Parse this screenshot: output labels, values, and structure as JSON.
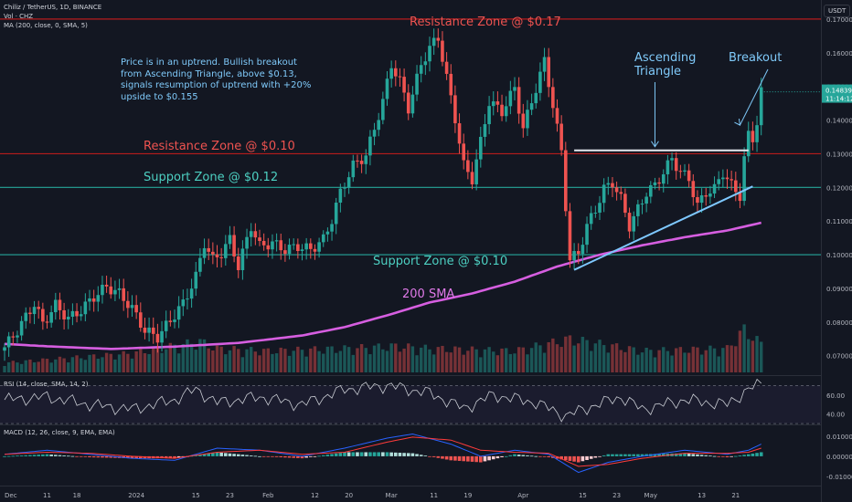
{
  "header": {
    "symbol_line": "Chiliz / TetherUS, 1D, BINANCE",
    "vol_line": "Vol · CHZ",
    "ma_line": "MA (200, close, 0, SMA, 5)",
    "currency_button": "USDT"
  },
  "annotations": {
    "resistance_017": "Resistance Zone @ $0.17",
    "resistance_010": "Resistance Zone @ $0.10",
    "support_012": "Support Zone @ $0.12",
    "support_010": "Support Zone @ $0.10",
    "sma_label": "200 SMA",
    "ascending_triangle": "Ascending\nTriangle",
    "breakout": "Breakout",
    "commentary": "Price is in an uptrend. Bullish breakout\nfrom Ascending Triangle, above $0.13,\nsignals resumption of uptrend with +20%\nupside to $0.155"
  },
  "price_tag": {
    "price": "0.14839",
    "countdown": "11:14:12"
  },
  "panes": {
    "rsi_label": "RSI (14, close, SMA, 14, 2)",
    "macd_label": "MACD (12, 26, close, 9, EMA, EMA)"
  },
  "colors": {
    "background": "#131722",
    "bull": "#26a69a",
    "bear": "#ef5350",
    "resistance_line": "#b71c1c",
    "support_line": "#26a69a",
    "sma": "#d65ee0",
    "triangle": "#7ec8ff",
    "annotation_text": "#7fc9f9",
    "rsi_line": "#c9ccd3",
    "macd_line": "#2962ff",
    "signal_line": "#ff3b3b",
    "axis_text": "#b2b5be"
  },
  "chart_data": {
    "type": "candlestick",
    "symbol": "Chiliz / TetherUS",
    "timeframe": "1D",
    "exchange": "BINANCE",
    "price_axis_ticks": [
      "0.17000",
      "0.16000",
      "0.15000",
      "0.14000",
      "0.13000",
      "0.12000",
      "0.11000",
      "0.10000",
      "0.09000",
      "0.08000",
      "0.07000"
    ],
    "price_ylim": [
      0.0645,
      0.1735
    ],
    "x_tick_labels": [
      "Dec",
      "11",
      "18",
      "2024",
      "15",
      "23",
      "Feb",
      "12",
      "20",
      "Mar",
      "11",
      "19",
      "Apr",
      "15",
      "23",
      "May",
      "13",
      "21"
    ],
    "x_tick_days": [
      0,
      10,
      17,
      31,
      45,
      53,
      62,
      73,
      81,
      91,
      101,
      109,
      122,
      136,
      144,
      152,
      164,
      172
    ],
    "horizontal_levels": [
      {
        "price": 0.17,
        "kind": "resistance"
      },
      {
        "price": 0.13,
        "kind": "resistance"
      },
      {
        "price": 0.12,
        "kind": "support"
      },
      {
        "price": 0.1,
        "kind": "support"
      }
    ],
    "triangle": {
      "top_price": 0.131,
      "top_start_day": 134,
      "top_end_day": 175,
      "bottom_start": [
        134,
        0.0955
      ],
      "bottom_end": [
        176,
        0.1203
      ]
    },
    "close_anchors": [
      [
        0,
        0.0725
      ],
      [
        3,
        0.0775
      ],
      [
        7,
        0.0855
      ],
      [
        9,
        0.0795
      ],
      [
        12,
        0.085
      ],
      [
        15,
        0.081
      ],
      [
        18,
        0.0835
      ],
      [
        21,
        0.0875
      ],
      [
        24,
        0.0905
      ],
      [
        27,
        0.0885
      ],
      [
        30,
        0.084
      ],
      [
        33,
        0.0775
      ],
      [
        36,
        0.0755
      ],
      [
        39,
        0.0805
      ],
      [
        42,
        0.0855
      ],
      [
        45,
        0.0935
      ],
      [
        47,
        0.1035
      ],
      [
        49,
        0.0985
      ],
      [
        51,
        0.1005
      ],
      [
        53,
        0.1045
      ],
      [
        55,
        0.0965
      ],
      [
        58,
        0.1085
      ],
      [
        60,
        0.1025
      ],
      [
        63,
        0.1035
      ],
      [
        66,
        0.1015
      ],
      [
        69,
        0.1025
      ],
      [
        72,
        0.1015
      ],
      [
        75,
        0.1045
      ],
      [
        77,
        0.1105
      ],
      [
        79,
        0.1185
      ],
      [
        82,
        0.1265
      ],
      [
        85,
        0.1295
      ],
      [
        87,
        0.1375
      ],
      [
        89,
        0.1455
      ],
      [
        91,
        0.1565
      ],
      [
        93,
        0.1515
      ],
      [
        95,
        0.1435
      ],
      [
        98,
        0.1565
      ],
      [
        100,
        0.1615
      ],
      [
        102,
        0.1645
      ],
      [
        104,
        0.1525
      ],
      [
        106,
        0.1405
      ],
      [
        108,
        0.1265
      ],
      [
        110,
        0.1225
      ],
      [
        112,
        0.1335
      ],
      [
        114,
        0.1455
      ],
      [
        117,
        0.1425
      ],
      [
        120,
        0.1495
      ],
      [
        122,
        0.1375
      ],
      [
        124,
        0.1455
      ],
      [
        127,
        0.1575
      ],
      [
        129,
        0.1445
      ],
      [
        131,
        0.1305
      ],
      [
        133,
        0.0985
      ],
      [
        135,
        0.1005
      ],
      [
        137,
        0.1085
      ],
      [
        139,
        0.1135
      ],
      [
        141,
        0.1195
      ],
      [
        143,
        0.1215
      ],
      [
        145,
        0.1165
      ],
      [
        147,
        0.1085
      ],
      [
        149,
        0.1135
      ],
      [
        151,
        0.1185
      ],
      [
        153,
        0.1205
      ],
      [
        155,
        0.1245
      ],
      [
        157,
        0.1285
      ],
      [
        159,
        0.1245
      ],
      [
        161,
        0.1225
      ],
      [
        163,
        0.1145
      ],
      [
        165,
        0.1185
      ],
      [
        167,
        0.1195
      ],
      [
        169,
        0.1245
      ],
      [
        171,
        0.1205
      ],
      [
        173,
        0.1175
      ],
      [
        174,
        0.1285
      ],
      [
        175,
        0.1355
      ],
      [
        176,
        0.1345
      ],
      [
        177,
        0.1395
      ],
      [
        178,
        0.1484
      ]
    ],
    "sma200_anchors": [
      [
        0,
        0.0735
      ],
      [
        10,
        0.0728
      ],
      [
        25,
        0.072
      ],
      [
        40,
        0.0727
      ],
      [
        55,
        0.0738
      ],
      [
        70,
        0.076
      ],
      [
        80,
        0.0785
      ],
      [
        90,
        0.082
      ],
      [
        100,
        0.0858
      ],
      [
        110,
        0.0885
      ],
      [
        120,
        0.092
      ],
      [
        130,
        0.0965
      ],
      [
        140,
        0.1
      ],
      [
        150,
        0.1028
      ],
      [
        160,
        0.1052
      ],
      [
        170,
        0.1072
      ],
      [
        178,
        0.1095
      ]
    ],
    "volume_anchors": [
      [
        0,
        0.2
      ],
      [
        15,
        0.3
      ],
      [
        30,
        0.4
      ],
      [
        46,
        0.65
      ],
      [
        50,
        0.5
      ],
      [
        62,
        0.45
      ],
      [
        80,
        0.5
      ],
      [
        92,
        0.55
      ],
      [
        100,
        0.5
      ],
      [
        120,
        0.45
      ],
      [
        133,
        0.7
      ],
      [
        150,
        0.45
      ],
      [
        170,
        0.5
      ],
      [
        174,
        0.9
      ],
      [
        178,
        0.6
      ]
    ],
    "rsi": {
      "ticks": [
        60,
        40
      ],
      "ylim": [
        32,
        78
      ],
      "anchors": [
        [
          0,
          55
        ],
        [
          10,
          58
        ],
        [
          20,
          50
        ],
        [
          30,
          45
        ],
        [
          40,
          55
        ],
        [
          45,
          66
        ],
        [
          50,
          52
        ],
        [
          60,
          58
        ],
        [
          70,
          50
        ],
        [
          80,
          66
        ],
        [
          90,
          70
        ],
        [
          100,
          62
        ],
        [
          108,
          46
        ],
        [
          115,
          60
        ],
        [
          125,
          52
        ],
        [
          132,
          38
        ],
        [
          138,
          48
        ],
        [
          145,
          58
        ],
        [
          150,
          45
        ],
        [
          160,
          55
        ],
        [
          170,
          50
        ],
        [
          175,
          66
        ],
        [
          178,
          72
        ]
      ]
    },
    "macd": {
      "ticks": [
        "0.01000",
        "0.00000",
        "-0.01000"
      ],
      "ylim": [
        -0.0145,
        0.0135
      ],
      "macd_anchors": [
        [
          0,
          0.001
        ],
        [
          10,
          0.003
        ],
        [
          20,
          0.001
        ],
        [
          30,
          -0.001
        ],
        [
          40,
          -0.002
        ],
        [
          50,
          0.004
        ],
        [
          60,
          0.003
        ],
        [
          70,
          0.0
        ],
        [
          80,
          0.004
        ],
        [
          90,
          0.009
        ],
        [
          96,
          0.011
        ],
        [
          105,
          0.006
        ],
        [
          112,
          0.0
        ],
        [
          120,
          0.003
        ],
        [
          128,
          0.001
        ],
        [
          135,
          -0.008
        ],
        [
          142,
          -0.003
        ],
        [
          150,
          0.0
        ],
        [
          160,
          0.003
        ],
        [
          170,
          0.001
        ],
        [
          175,
          0.003
        ],
        [
          178,
          0.006
        ]
      ],
      "signal_anchors": [
        [
          0,
          0.001
        ],
        [
          10,
          0.002
        ],
        [
          20,
          0.0015
        ],
        [
          30,
          0.0
        ],
        [
          40,
          -0.001
        ],
        [
          50,
          0.002
        ],
        [
          60,
          0.003
        ],
        [
          70,
          0.001
        ],
        [
          80,
          0.002
        ],
        [
          90,
          0.007
        ],
        [
          96,
          0.0095
        ],
        [
          105,
          0.008
        ],
        [
          112,
          0.003
        ],
        [
          120,
          0.002
        ],
        [
          128,
          0.0015
        ],
        [
          135,
          -0.005
        ],
        [
          142,
          -0.004
        ],
        [
          150,
          -0.001
        ],
        [
          160,
          0.0015
        ],
        [
          170,
          0.0015
        ],
        [
          175,
          0.002
        ],
        [
          178,
          0.004
        ]
      ]
    }
  }
}
